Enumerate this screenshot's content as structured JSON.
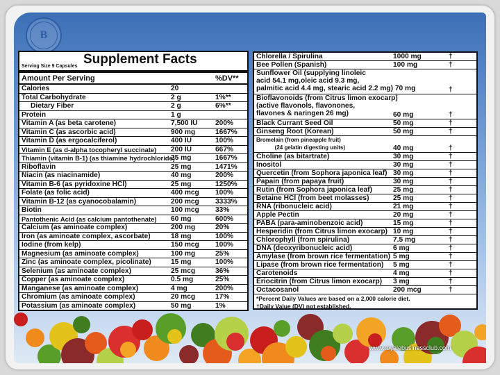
{
  "logo": {
    "initial": "B"
  },
  "left": {
    "title": "Supplement Facts",
    "serving": "Serving Size 9 Capsules",
    "amount_header": "Amount Per Serving",
    "dv_header": "%DV**",
    "rows": [
      [
        "Calories",
        "20",
        ""
      ],
      [
        "Total Carbohydrate",
        "2 g",
        "1%**"
      ],
      [
        "   Dietary Fiber",
        "2 g",
        "6%**"
      ],
      [
        "Protein",
        "1 g",
        ""
      ],
      [
        "Vitamin A (as beta carotene)",
        "7,500 IU",
        "200%"
      ],
      [
        "Vitamin C (as ascorbic acid)",
        "900 mg",
        "1667%"
      ],
      [
        "Vitamin D (as ergocalciferol)",
        "400 IU",
        "100%"
      ],
      [
        "Vitamin E (as d-alpha tocopheryl succinate)",
        "200 IU",
        "667%"
      ],
      [
        "Thiamin (vitamin B-1) (as thiamine hydrochloride)",
        "25 mg",
        "1667%"
      ],
      [
        "Riboflavin",
        "25 mg",
        "1471%"
      ],
      [
        "Niacin (as niacinamide)",
        "40 mg",
        "200%"
      ],
      [
        "Vitamin B-6 (as pyridoxine HCl)",
        "25 mg",
        "1250%"
      ],
      [
        "Folate (as folic acid)",
        "400 mcg",
        "100%"
      ],
      [
        "Vitamin B-12 (as cyanocobalamin)",
        "200 mcg",
        "3333%"
      ],
      [
        "Biotin",
        "100 mcg",
        "33%"
      ],
      [
        "Pantothenic Acid (as calcium pantothenate)",
        "60 mg",
        "600%"
      ],
      [
        "Calcium (as aminoate complex)",
        "200 mg",
        "20%"
      ],
      [
        "Iron (as aminoate complex, ascorbate)",
        "18 mg",
        "100%"
      ],
      [
        "Iodine (from kelp)",
        "150 mcg",
        "100%"
      ],
      [
        "Magnesium (as aminoate complex)",
        "100 mg",
        "25%"
      ],
      [
        "Zinc (as aminoate complex, picolinate)",
        "15 mg",
        "100%"
      ],
      [
        "Selenium (as aminoate complex)",
        "25 mcg",
        "36%"
      ],
      [
        "Copper (as aminoate complex)",
        "0.5 mg",
        "25%"
      ],
      [
        "Manganese (as aminoate complex)",
        "4 mg",
        "200%"
      ],
      [
        "Chromium (as aminoate complex)",
        "20 mcg",
        "17%"
      ],
      [
        "Potassium (as aminoate complex)",
        "50 mg",
        "1%"
      ]
    ]
  },
  "right": {
    "rows": [
      {
        "lines": [
          "Chlorella / Spirulina"
        ],
        "amount": "1000 mg",
        "dv": "†"
      },
      {
        "lines": [
          "Bee Pollen (Spanish)"
        ],
        "amount": "100 mg",
        "dv": "†"
      },
      {
        "lines": [
          "Sunflower Oil (supplying linoleic",
          "acid 54.1 mg,oleic acid 9.3 mg,",
          "palmitic acid 4.4 mg, stearic acid 2.2 mg) 70 mg"
        ],
        "amount": "",
        "dv": "†"
      },
      {
        "lines": [
          "Bioflavonoids (from Citrus limon exocarp)",
          "(active flavonols, flavonones,",
          "flavones & naringen 26 mg)"
        ],
        "amount": "60 mg",
        "dv": "†"
      },
      {
        "lines": [
          "Black Currant Seed Oil"
        ],
        "amount": "50 mg",
        "dv": "†"
      },
      {
        "lines": [
          "Ginseng Root (Korean)"
        ],
        "amount": "50 mg",
        "dv": "†"
      },
      {
        "lines": [
          "Bromelain (from pineapple fruit)",
          "            (24 gelatin digesting units)"
        ],
        "amount": "40 mg",
        "dv": "†"
      },
      {
        "lines": [
          "Choline (as bitartrate)"
        ],
        "amount": "30 mg",
        "dv": "†"
      },
      {
        "lines": [
          "Inositol"
        ],
        "amount": "30 mg",
        "dv": "†"
      },
      {
        "lines": [
          "Quercetin (from Sophora japonica leaf)"
        ],
        "amount": "30 mg",
        "dv": "†"
      },
      {
        "lines": [
          "Papain (from papaya fruit)"
        ],
        "amount": "30 mg",
        "dv": "†"
      },
      {
        "lines": [
          "Rutin (from Sophora japonica leaf)"
        ],
        "amount": "25 mg",
        "dv": "†"
      },
      {
        "lines": [
          "Betaine HCl (from beet molasses)"
        ],
        "amount": "25 mg",
        "dv": "†"
      },
      {
        "lines": [
          "RNA (ribonucleic acid)"
        ],
        "amount": "21 mg",
        "dv": "†"
      },
      {
        "lines": [
          "Apple Pectin"
        ],
        "amount": "20 mg",
        "dv": "†"
      },
      {
        "lines": [
          "PABA (para-aminobenzoic acid)"
        ],
        "amount": "15 mg",
        "dv": "†"
      },
      {
        "lines": [
          "Hesperidin (from Citrus limon exocarp)"
        ],
        "amount": "10 mg",
        "dv": "†"
      },
      {
        "lines": [
          "Chlorophyll (from spirulina)"
        ],
        "amount": "7.5 mg",
        "dv": "†"
      },
      {
        "lines": [
          "DNA (deoxyribonucleic acid)"
        ],
        "amount": "6 mg",
        "dv": "†"
      },
      {
        "lines": [
          "Amylase (from brown rice fermentation)"
        ],
        "amount": "5 mg",
        "dv": "†"
      },
      {
        "lines": [
          "Lipase (from brown rice fermentation)"
        ],
        "amount": "5 mg",
        "dv": "†"
      },
      {
        "lines": [
          "Carotenoids"
        ],
        "amount": "4 mg",
        "dv": "†"
      },
      {
        "lines": [
          "Eriocitrin (from Citrus limon exocarp)"
        ],
        "amount": "3 mg",
        "dv": "†"
      },
      {
        "lines": [
          "Octacosanol"
        ],
        "amount": "200 mcg",
        "dv": "†"
      }
    ],
    "footnotes": [
      "*Percent Daily Values are based on a 2,000 calorie diet.",
      "†Daily Value (DV) not established."
    ]
  },
  "website": "www.royalebusinessclub.com"
}
